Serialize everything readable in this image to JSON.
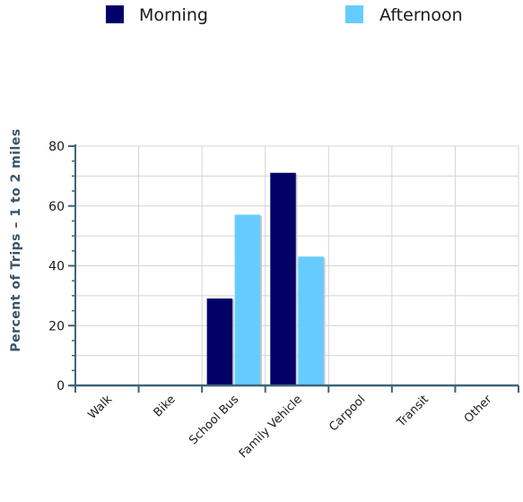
{
  "chart_data": {
    "type": "bar",
    "categories": [
      "Walk",
      "Bike",
      "School Bus",
      "Family Vehicle",
      "Carpool",
      "Transit",
      "Other"
    ],
    "series": [
      {
        "name": "Morning",
        "color": "#000066",
        "values": [
          0,
          0,
          29,
          71,
          0,
          0,
          0
        ]
      },
      {
        "name": "Afternoon",
        "color": "#66ccff",
        "values": [
          0,
          0,
          57,
          43,
          0,
          0,
          0
        ]
      }
    ],
    "ylabel": "Percent of Trips – 1 to 2 miles",
    "ylim": [
      0,
      80
    ],
    "yticks": [
      0,
      20,
      40,
      60,
      80
    ],
    "grid": true,
    "legend_position": "top"
  }
}
